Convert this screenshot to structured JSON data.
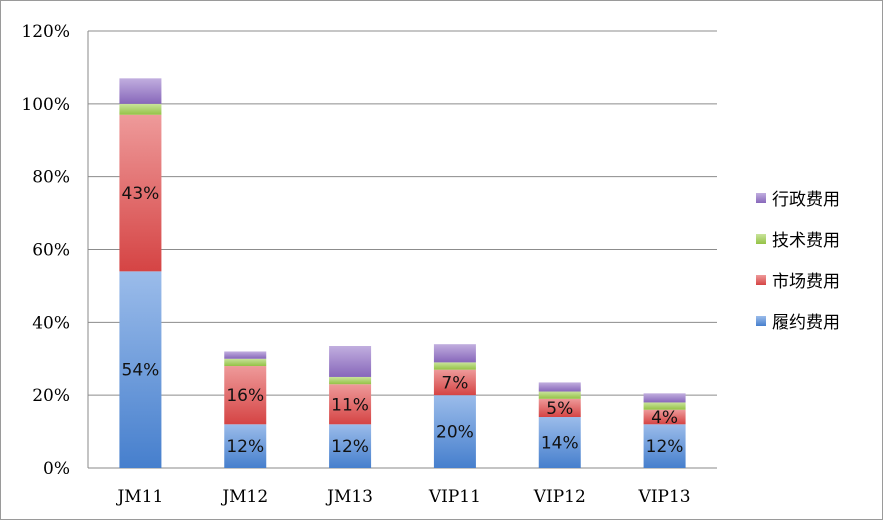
{
  "chart_data": {
    "type": "bar",
    "stacked": true,
    "categories": [
      "JM11",
      "JM12",
      "JM13",
      "VIP11",
      "VIP12",
      "VIP13"
    ],
    "series": [
      {
        "name": "履约费用",
        "color": "#4a86d8",
        "values": [
          54,
          12,
          12,
          20,
          14,
          12
        ],
        "labels": [
          "54%",
          "12%",
          "12%",
          "20%",
          "14%",
          "12%"
        ]
      },
      {
        "name": "市场费用",
        "color": "#e04848",
        "values": [
          43,
          16,
          11,
          7,
          5,
          4
        ],
        "labels": [
          "43%",
          "16%",
          "11%",
          "7%",
          "5%",
          "4%"
        ]
      },
      {
        "name": "技术费用",
        "color": "#9ccc4a",
        "values": [
          3,
          2,
          2,
          2,
          2,
          2
        ],
        "labels": [
          "",
          "",
          "",
          "",
          "",
          ""
        ]
      },
      {
        "name": "行政费用",
        "color": "#8e6cc4",
        "values": [
          7,
          2,
          8.5,
          5,
          2.5,
          2.5
        ],
        "labels": [
          "",
          "",
          "",
          "",
          "",
          ""
        ]
      }
    ],
    "ylim": [
      0,
      120
    ],
    "yticks": [
      "0%",
      "20%",
      "40%",
      "60%",
      "80%",
      "100%",
      "120%"
    ],
    "ytick_values": [
      0,
      20,
      40,
      60,
      80,
      100,
      120
    ],
    "grid": true,
    "legend_position": "right",
    "legend_order": [
      "行政费用",
      "技术费用",
      "市场费用",
      "履约费用"
    ]
  }
}
